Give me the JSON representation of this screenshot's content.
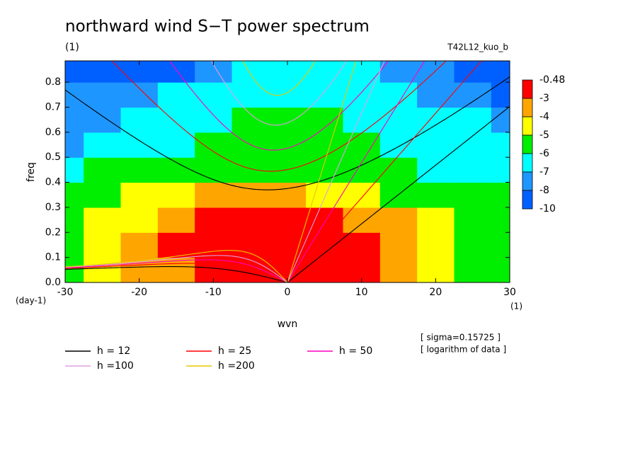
{
  "chart_data": {
    "type": "contour",
    "title": "northward wind S−T power spectrum",
    "subtitle": "(1)",
    "run_label": "T42L12_kuo_b",
    "xlabel": "wvn",
    "ylabel": "freq",
    "y_unit": "(day-1)",
    "x_unit": "(1)",
    "notes": [
      "[ sigma=0.15725 ]",
      "[ logarithm of data ]"
    ],
    "xlim": [
      -30,
      30
    ],
    "ylim": [
      0,
      0.885
    ],
    "xticks": [
      -30,
      -20,
      -10,
      0,
      10,
      20,
      30
    ],
    "yticks": [
      {
        "value": 0,
        "label": "0.0"
      },
      0.1,
      0.2,
      0.3,
      0.4,
      0.5,
      0.6,
      0.7,
      0.8
    ],
    "levels": [
      -0.48,
      -3,
      -4,
      -5,
      -6,
      -7,
      -8,
      -10
    ],
    "level_colors": [
      "#ff0000",
      "#ffa500",
      "#ffff00",
      "#00ee00",
      "#00ffff",
      "#1e96ff",
      "#0060ff"
    ],
    "field": {
      "x": [
        -30,
        -25,
        -20,
        -15,
        -10,
        -5,
        0,
        5,
        10,
        15,
        20,
        25,
        30
      ],
      "y": [
        0.05,
        0.15,
        0.25,
        0.35,
        0.45,
        0.55,
        0.65,
        0.75,
        0.85
      ],
      "z": [
        [
          -5.5,
          -4.5,
          -3.5,
          -3.5,
          -2,
          -2,
          -2,
          -2,
          -2,
          -3.5,
          -4.5,
          -5.5,
          -5.5
        ],
        [
          -5.5,
          -4.5,
          -3.5,
          -2,
          -2,
          -2,
          -2,
          -2,
          -2,
          -3.5,
          -4.5,
          -5.5,
          -5.5
        ],
        [
          -5.5,
          -4.5,
          -4.5,
          -3.5,
          -2,
          -2,
          -2,
          -2,
          -3.5,
          -3.5,
          -4.5,
          -5.5,
          -5.5
        ],
        [
          -5.5,
          -5.5,
          -4.5,
          -4.5,
          -3.5,
          -3.5,
          -3.5,
          -4.5,
          -4.5,
          -5.5,
          -5.5,
          -5.5,
          -5.5
        ],
        [
          -6.5,
          -5.5,
          -5.5,
          -5.5,
          -5.5,
          -5.5,
          -5.5,
          -5.5,
          -5.5,
          -5.5,
          -6.5,
          -6.5,
          -6.5
        ],
        [
          -7.5,
          -6.5,
          -6.5,
          -6.5,
          -5.5,
          -5.5,
          -5.5,
          -5.5,
          -5.5,
          -6.5,
          -6.5,
          -6.5,
          -6.5
        ],
        [
          -7.5,
          -7.5,
          -6.5,
          -6.5,
          -6.5,
          -5.5,
          -5.5,
          -5.5,
          -6.5,
          -6.5,
          -6.5,
          -6.5,
          -7.5
        ],
        [
          -7.5,
          -7.5,
          -7.5,
          -6.5,
          -6.5,
          -6.5,
          -6.5,
          -6.5,
          -6.5,
          -6.5,
          -7.5,
          -7.5,
          -9
        ],
        [
          -9,
          -9,
          -9,
          -9,
          -7.5,
          -6.5,
          -6.5,
          -6.5,
          -6.5,
          -7.5,
          -7.5,
          -9,
          -9
        ]
      ]
    },
    "waves": [
      {
        "name": "h = 12",
        "h": 12,
        "color": "#000000"
      },
      {
        "name": "h = 25",
        "h": 25,
        "color": "#ff0000"
      },
      {
        "name": "h = 50",
        "h": 50,
        "color": "#ff00c0"
      },
      {
        "name": "h =100",
        "h": 100,
        "color": "#e0a0e0"
      },
      {
        "name": "h =200",
        "h": 200,
        "color": "#e8c800"
      }
    ]
  }
}
